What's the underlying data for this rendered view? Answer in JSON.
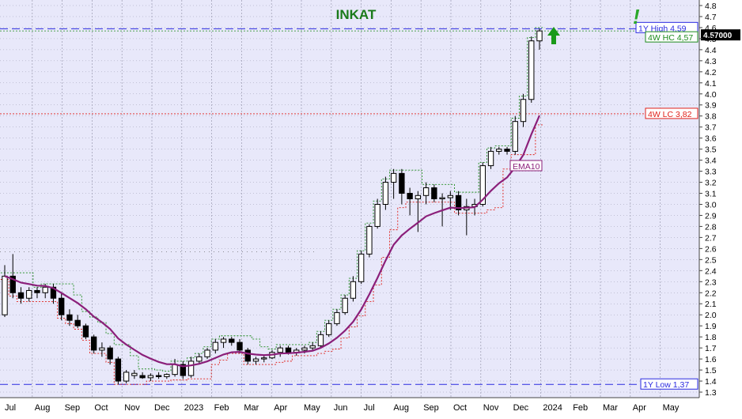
{
  "chart_data": {
    "type": "candlestick",
    "title": "INKAT",
    "colors": {
      "plot_bg": "#e8e8fa",
      "grid": "#9a9ab0",
      "ema": "#8b1f7a",
      "hc": "#1a8a1a",
      "lc": "#e0201a",
      "title": "#1a7a1a",
      "high_low_line": "#2a2ae0"
    },
    "ylim": [
      1.3,
      4.8
    ],
    "y_ticks": [
      "1.3",
      "1.4",
      "1.5",
      "1.6",
      "1.7",
      "1.8",
      "1.9",
      "2.0",
      "2.1",
      "2.2",
      "2.3",
      "2.4",
      "2.5",
      "2.6",
      "2.7",
      "2.8",
      "2.9",
      "3.0",
      "3.1",
      "3.2",
      "3.3",
      "3.4",
      "3.5",
      "3.6",
      "3.7",
      "3.8",
      "3.9",
      "4.0",
      "4.1",
      "4.2",
      "4.3",
      "4.4",
      "4.5",
      "4.6",
      "4.7",
      "4.8"
    ],
    "x_ticks": [
      "Jul",
      "Aug",
      "Sep",
      "Oct",
      "Nov",
      "Dec",
      "2023",
      "Feb",
      "Mar",
      "Apr",
      "May",
      "Jun",
      "Jul",
      "Aug",
      "Sep",
      "Oct",
      "Nov",
      "Dec",
      "2024",
      "Feb",
      "Mar",
      "Apr",
      "May"
    ],
    "price_label": "4.57000",
    "levels": {
      "high_1y": {
        "label": "1Y High 4,59",
        "value": 4.59
      },
      "hc_4w": {
        "label": "4W HC 4,57",
        "value": 4.57
      },
      "lc_4w": {
        "label": "4W LC 3,82",
        "value": 3.82
      },
      "low_1y": {
        "label": "1Y Low 1,37",
        "value": 1.37
      }
    },
    "ema_label": "EMA10",
    "signal_marks": [
      "!"
    ],
    "candles": [
      {
        "o": 2.0,
        "h": 2.45,
        "l": 1.98,
        "c": 2.35
      },
      {
        "o": 2.35,
        "h": 2.55,
        "l": 2.15,
        "c": 2.2
      },
      {
        "o": 2.2,
        "h": 2.25,
        "l": 2.1,
        "c": 2.15
      },
      {
        "o": 2.15,
        "h": 2.25,
        "l": 2.12,
        "c": 2.22
      },
      {
        "o": 2.22,
        "h": 2.25,
        "l": 2.15,
        "c": 2.2
      },
      {
        "o": 2.2,
        "h": 2.28,
        "l": 2.15,
        "c": 2.25
      },
      {
        "o": 2.25,
        "h": 2.28,
        "l": 2.1,
        "c": 2.15
      },
      {
        "o": 2.15,
        "h": 2.2,
        "l": 1.95,
        "c": 2.0
      },
      {
        "o": 2.0,
        "h": 2.05,
        "l": 1.9,
        "c": 1.95
      },
      {
        "o": 1.95,
        "h": 2.0,
        "l": 1.88,
        "c": 1.9
      },
      {
        "o": 1.9,
        "h": 1.92,
        "l": 1.78,
        "c": 1.8
      },
      {
        "o": 1.8,
        "h": 1.82,
        "l": 1.65,
        "c": 1.68
      },
      {
        "o": 1.68,
        "h": 1.75,
        "l": 1.62,
        "c": 1.7
      },
      {
        "o": 1.7,
        "h": 1.72,
        "l": 1.55,
        "c": 1.6
      },
      {
        "o": 1.6,
        "h": 1.62,
        "l": 1.37,
        "c": 1.4
      },
      {
        "o": 1.4,
        "h": 1.5,
        "l": 1.38,
        "c": 1.48
      },
      {
        "o": 1.45,
        "h": 1.5,
        "l": 1.42,
        "c": 1.47
      },
      {
        "o": 1.45,
        "h": 1.48,
        "l": 1.42,
        "c": 1.43
      },
      {
        "o": 1.43,
        "h": 1.47,
        "l": 1.4,
        "c": 1.45
      },
      {
        "o": 1.45,
        "h": 1.48,
        "l": 1.42,
        "c": 1.44
      },
      {
        "o": 1.44,
        "h": 1.47,
        "l": 1.42,
        "c": 1.46
      },
      {
        "o": 1.46,
        "h": 1.6,
        "l": 1.44,
        "c": 1.55
      },
      {
        "o": 1.55,
        "h": 1.58,
        "l": 1.42,
        "c": 1.45
      },
      {
        "o": 1.45,
        "h": 1.62,
        "l": 1.43,
        "c": 1.58
      },
      {
        "o": 1.58,
        "h": 1.65,
        "l": 1.55,
        "c": 1.62
      },
      {
        "o": 1.62,
        "h": 1.7,
        "l": 1.6,
        "c": 1.68
      },
      {
        "o": 1.68,
        "h": 1.78,
        "l": 1.65,
        "c": 1.75
      },
      {
        "o": 1.75,
        "h": 1.8,
        "l": 1.7,
        "c": 1.78
      },
      {
        "o": 1.78,
        "h": 1.8,
        "l": 1.72,
        "c": 1.75
      },
      {
        "o": 1.75,
        "h": 1.78,
        "l": 1.65,
        "c": 1.68
      },
      {
        "o": 1.68,
        "h": 1.7,
        "l": 1.55,
        "c": 1.58
      },
      {
        "o": 1.58,
        "h": 1.62,
        "l": 1.55,
        "c": 1.6
      },
      {
        "o": 1.6,
        "h": 1.63,
        "l": 1.57,
        "c": 1.61
      },
      {
        "o": 1.61,
        "h": 1.68,
        "l": 1.6,
        "c": 1.66
      },
      {
        "o": 1.66,
        "h": 1.72,
        "l": 1.62,
        "c": 1.7
      },
      {
        "o": 1.7,
        "h": 1.72,
        "l": 1.64,
        "c": 1.66
      },
      {
        "o": 1.66,
        "h": 1.7,
        "l": 1.63,
        "c": 1.68
      },
      {
        "o": 1.68,
        "h": 1.72,
        "l": 1.65,
        "c": 1.7
      },
      {
        "o": 1.7,
        "h": 1.75,
        "l": 1.68,
        "c": 1.72
      },
      {
        "o": 1.72,
        "h": 1.85,
        "l": 1.7,
        "c": 1.82
      },
      {
        "o": 1.82,
        "h": 1.95,
        "l": 1.8,
        "c": 1.92
      },
      {
        "o": 1.92,
        "h": 2.05,
        "l": 1.9,
        "c": 2.02
      },
      {
        "o": 2.02,
        "h": 2.18,
        "l": 2.0,
        "c": 2.15
      },
      {
        "o": 2.15,
        "h": 2.35,
        "l": 2.12,
        "c": 2.3
      },
      {
        "o": 2.3,
        "h": 2.58,
        "l": 2.28,
        "c": 2.55
      },
      {
        "o": 2.55,
        "h": 2.82,
        "l": 2.52,
        "c": 2.8
      },
      {
        "o": 2.8,
        "h": 3.05,
        "l": 2.78,
        "c": 3.0
      },
      {
        "o": 3.0,
        "h": 3.25,
        "l": 2.95,
        "c": 3.2
      },
      {
        "o": 3.2,
        "h": 3.32,
        "l": 3.05,
        "c": 3.28
      },
      {
        "o": 3.28,
        "h": 3.32,
        "l": 3.0,
        "c": 3.1
      },
      {
        "o": 3.1,
        "h": 3.15,
        "l": 2.9,
        "c": 3.05
      },
      {
        "o": 3.05,
        "h": 3.12,
        "l": 2.75,
        "c": 3.08
      },
      {
        "o": 3.08,
        "h": 3.2,
        "l": 3.0,
        "c": 3.15
      },
      {
        "o": 3.15,
        "h": 3.18,
        "l": 3.02,
        "c": 3.05
      },
      {
        "o": 3.05,
        "h": 3.1,
        "l": 2.8,
        "c": 3.06
      },
      {
        "o": 3.06,
        "h": 3.12,
        "l": 2.95,
        "c": 3.08
      },
      {
        "o": 3.08,
        "h": 3.12,
        "l": 2.9,
        "c": 2.95
      },
      {
        "o": 2.95,
        "h": 3.05,
        "l": 2.72,
        "c": 2.98
      },
      {
        "o": 2.98,
        "h": 3.05,
        "l": 2.9,
        "c": 3.0
      },
      {
        "o": 3.0,
        "h": 3.38,
        "l": 2.98,
        "c": 3.35
      },
      {
        "o": 3.35,
        "h": 3.52,
        "l": 3.32,
        "c": 3.48
      },
      {
        "o": 3.48,
        "h": 3.52,
        "l": 3.45,
        "c": 3.5
      },
      {
        "o": 3.5,
        "h": 3.52,
        "l": 3.45,
        "c": 3.48
      },
      {
        "o": 3.48,
        "h": 3.8,
        "l": 3.45,
        "c": 3.75
      },
      {
        "o": 3.75,
        "h": 4.0,
        "l": 3.7,
        "c": 3.95
      },
      {
        "o": 3.95,
        "h": 4.52,
        "l": 3.92,
        "c": 4.48
      },
      {
        "o": 4.48,
        "h": 4.59,
        "l": 4.4,
        "c": 4.57
      }
    ]
  }
}
